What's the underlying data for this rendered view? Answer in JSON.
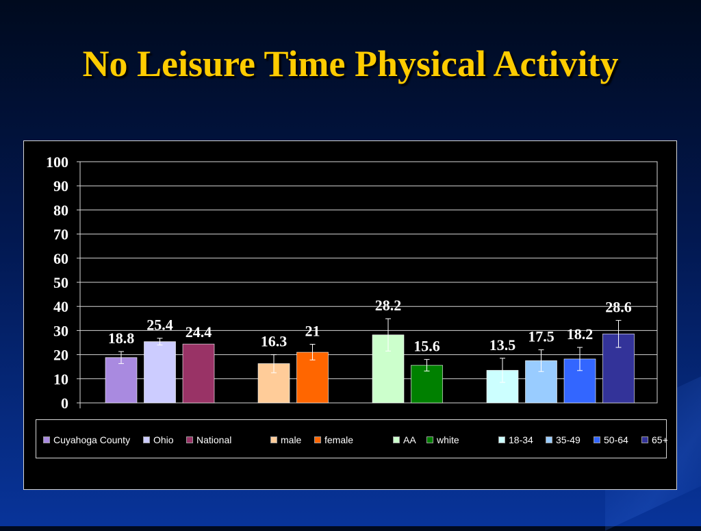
{
  "title": "No Leisure Time Physical Activity",
  "chart_data": {
    "type": "bar",
    "title": "",
    "xlabel": "",
    "ylabel": "",
    "ylim": [
      0,
      100
    ],
    "yticks": [
      0,
      10,
      20,
      30,
      40,
      50,
      60,
      70,
      80,
      90,
      100
    ],
    "grid": true,
    "legend_position": "bottom",
    "groups": [
      {
        "bars": [
          {
            "name": "Cuyahoga County",
            "value": 18.8,
            "label": "18.8",
            "error": [
              16.3,
              21.3
            ],
            "color": "#a98ae0"
          },
          {
            "name": "Ohio",
            "value": 25.4,
            "label": "25.4",
            "error": [
              24.0,
              26.8
            ],
            "color": "#ccccff"
          },
          {
            "name": "National",
            "value": 24.4,
            "label": "24.4",
            "error": null,
            "color": "#993366"
          }
        ]
      },
      {
        "bars": [
          {
            "name": "male",
            "value": 16.3,
            "label": "16.3",
            "error": [
              12.5,
              20.0
            ],
            "color": "#ffcc99"
          },
          {
            "name": "female",
            "value": 21,
            "label": "21",
            "error": [
              17.8,
              24.3
            ],
            "color": "#ff6600"
          }
        ]
      },
      {
        "bars": [
          {
            "name": "AA",
            "value": 28.2,
            "label": "28.2",
            "error": [
              21.5,
              34.9
            ],
            "color": "#ccffcc"
          },
          {
            "name": "white",
            "value": 15.6,
            "label": "15.6",
            "error": [
              13.2,
              18.0
            ],
            "color": "#008000"
          }
        ]
      },
      {
        "bars": [
          {
            "name": "18-34",
            "value": 13.5,
            "label": "13.5",
            "error": [
              8.5,
              18.5
            ],
            "color": "#ccffff"
          },
          {
            "name": "35-49",
            "value": 17.5,
            "label": "17.5",
            "error": [
              13.0,
              22.0
            ],
            "color": "#99ccff"
          },
          {
            "name": "50-64",
            "value": 18.2,
            "label": "18.2",
            "error": [
              13.4,
              23.0
            ],
            "color": "#3366ff"
          },
          {
            "name": "65+",
            "value": 28.6,
            "label": "28.6",
            "error": [
              23.0,
              34.2
            ],
            "color": "#333399"
          }
        ]
      }
    ]
  }
}
